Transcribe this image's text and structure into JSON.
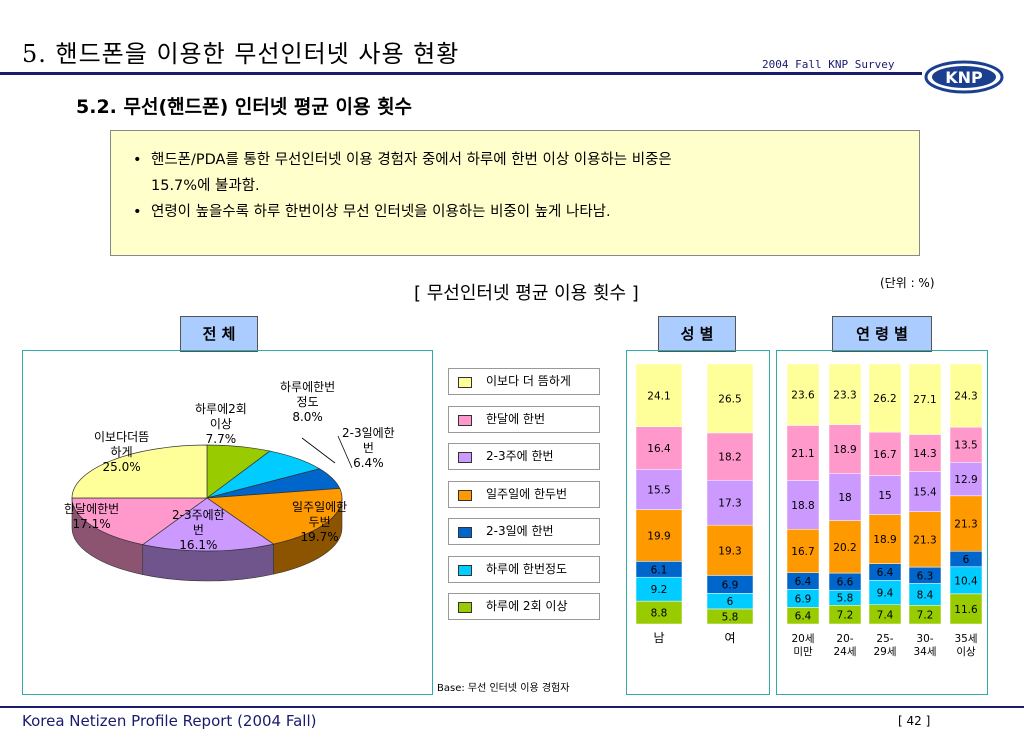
{
  "header": {
    "title": "5. 핸드폰을 이용한 무선인터넷 사용 현황",
    "survey": "2004 Fall KNP Survey",
    "logo_text": "KNP"
  },
  "subtitle": "5.2.  무선(핸드폰) 인터넷 평균 이용 횟수",
  "summary": {
    "bullet1_line1": "핸드폰/PDA를 통한 무선인터넷 이용 경험자 중에서 하루에 한번 이상 이용하는 비중은",
    "bullet1_line2": "15.7%에 불과함.",
    "bullet2": "연령이 높을수록 하루 한번이상 무선 인터넷을 이용하는 비중이 높게 나타남."
  },
  "chart_title": "[ 무선인터넷 평균 이용 횟수 ]",
  "unit": "(단위 : %)",
  "panel_headers": {
    "total": "전 체",
    "gender": "성 별",
    "age": "연 령 별"
  },
  "base_note": "Base: 무선 인터넷 이용 경험자",
  "footer": {
    "left": "Korea Netizen Profile Report (2004 Fall)",
    "page": "[ 42 ]"
  },
  "colors": {
    "less": "#ffff99",
    "monthly": "#ff99cc",
    "every_2_3_weeks": "#cc99ff",
    "weekly_1_2": "#ff9900",
    "every_2_3_days": "#0066cc",
    "daily_once": "#00ccff",
    "daily_2plus": "#99cc00"
  },
  "chart_data": [
    {
      "type": "pie",
      "categories": [
        "하루에2회 이상",
        "하루에한번 정도",
        "2-3일에한 번",
        "일주일에한 두번",
        "2-3주에한 번",
        "한달에한번",
        "이보다더뜸 하게"
      ],
      "labels": [
        "하루에2회\n이상\n7.7%",
        "하루에한번\n정도\n8.0%",
        "2-3일에한\n번\n6.4%",
        "일주일에한\n두번\n19.7%",
        "2-3주에한\n번\n16.1%",
        "한달에한번\n17.1%",
        "이보다더뜸\n하게\n25.0%"
      ],
      "values": [
        7.7,
        8.0,
        6.4,
        19.7,
        16.1,
        17.1,
        25.0
      ]
    },
    {
      "type": "bar",
      "stacked": true,
      "legend": [
        "이보다 더 뜸하게",
        "한달에 한번",
        "2-3주에 한번",
        "일주일에 한두번",
        "2-3일에 한번",
        "하루에 한번정도",
        "하루에 2회 이상"
      ],
      "gender": {
        "categories": [
          "남",
          "여"
        ],
        "series": [
          {
            "name": "하루에 2회 이상",
            "values": [
              8.8,
              5.8
            ]
          },
          {
            "name": "하루에 한번정도",
            "values": [
              9.2,
              6
            ]
          },
          {
            "name": "2-3일에 한번",
            "values": [
              6.1,
              6.9
            ]
          },
          {
            "name": "일주일에 한두번",
            "values": [
              19.9,
              19.3
            ]
          },
          {
            "name": "2-3주에 한번",
            "values": [
              15.5,
              17.3
            ]
          },
          {
            "name": "한달에 한번",
            "values": [
              16.4,
              18.2
            ]
          },
          {
            "name": "이보다 더 뜸하게",
            "values": [
              24.1,
              26.5
            ]
          }
        ]
      },
      "age": {
        "categories": [
          "20세\n미만",
          "20-\n24세",
          "25-\n29세",
          "30-\n34세",
          "35세\n이상"
        ],
        "series": [
          {
            "name": "하루에 2회 이상",
            "values": [
              6.4,
              7.2,
              7.4,
              7.2,
              11.6
            ]
          },
          {
            "name": "하루에 한번정도",
            "values": [
              6.9,
              5.8,
              9.4,
              8.4,
              10.4
            ]
          },
          {
            "name": "2-3일에 한번",
            "values": [
              6.4,
              6.6,
              6.4,
              6.3,
              6
            ]
          },
          {
            "name": "일주일에 한두번",
            "values": [
              16.7,
              20.2,
              18.9,
              21.3,
              21.3
            ]
          },
          {
            "name": "2-3주에 한번",
            "values": [
              18.8,
              18,
              15,
              15.4,
              12.9
            ]
          },
          {
            "name": "한달에 한번",
            "values": [
              21.1,
              18.9,
              16.7,
              14.3,
              13.5
            ]
          },
          {
            "name": "이보다 더 뜸하게",
            "values": [
              23.6,
              23.3,
              26.2,
              27.1,
              24.3
            ]
          }
        ]
      }
    }
  ]
}
